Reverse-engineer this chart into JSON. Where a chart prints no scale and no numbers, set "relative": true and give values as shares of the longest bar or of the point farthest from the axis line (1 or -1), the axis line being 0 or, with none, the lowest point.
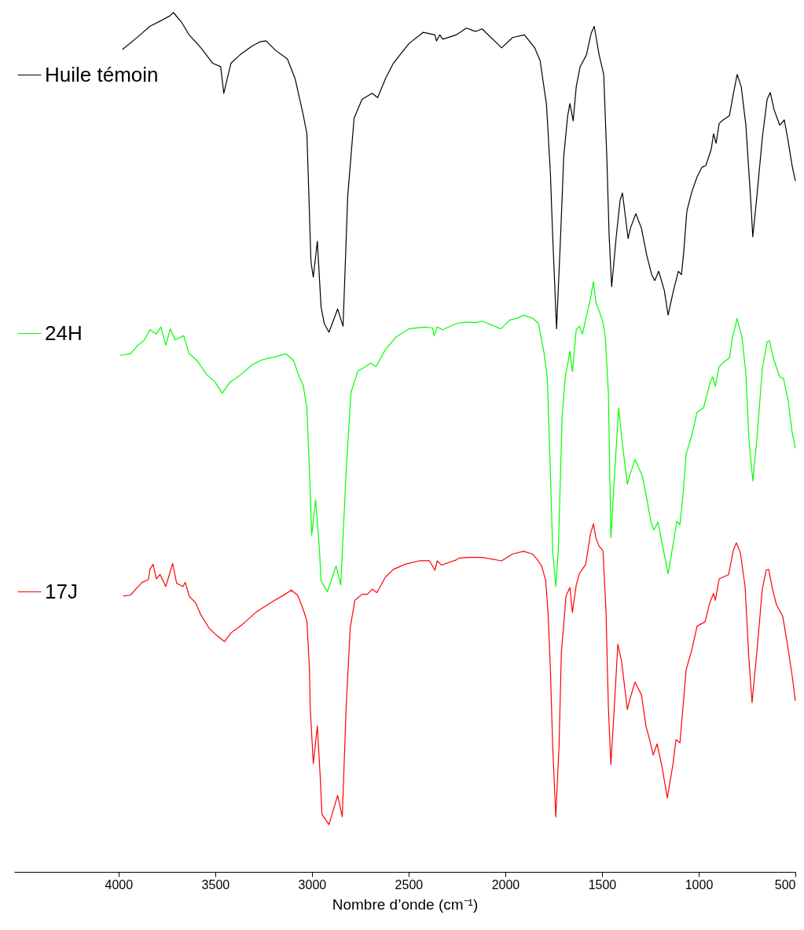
{
  "chart_data": {
    "type": "line",
    "relative": true,
    "xlabel": "Nombre d’onde (cm⁻¹)",
    "xlim": [
      4540,
      500
    ],
    "xticks": [
      4000,
      3500,
      3000,
      2500,
      2000,
      1500,
      1000,
      500
    ],
    "legend": "top left",
    "series": [
      {
        "name": "Huile témoin",
        "color": "#000000",
        "x": [
          3980,
          3899,
          3838,
          3777,
          3736,
          3716,
          3675,
          3635,
          3574,
          3513,
          3472,
          3456,
          3419,
          3371,
          3310,
          3269,
          3237,
          3188,
          3127,
          3087,
          3046,
          3026,
          3005,
          2993,
          2972,
          2953,
          2936,
          2912,
          2867,
          2839,
          2815,
          2782,
          2741,
          2689,
          2660,
          2620,
          2579,
          2498,
          2425,
          2364,
          2356,
          2339,
          2323,
          2254,
          2201,
          2153,
          2120,
          2019,
          1962,
          1901,
          1848,
          1820,
          1787,
          1767,
          1755,
          1735,
          1714,
          1698,
          1678,
          1666,
          1649,
          1633,
          1613,
          1580,
          1556,
          1540,
          1515,
          1491,
          1475,
          1463,
          1450,
          1426,
          1406,
          1394,
          1365,
          1353,
          1325,
          1296,
          1268,
          1243,
          1227,
          1207,
          1178,
          1158,
          1130,
          1105,
          1089,
          1077,
          1061,
          1036,
          1008,
          983,
          963,
          935,
          923,
          910,
          894,
          874,
          841,
          821,
          801,
          780,
          756,
          732,
          720,
          699,
          671,
          646,
          630,
          610,
          581,
          557,
          537,
          517,
          500
        ],
        "values": [
          0.957,
          0.972,
          0.984,
          0.991,
          0.996,
          1.0,
          0.989,
          0.974,
          0.959,
          0.941,
          0.937,
          0.906,
          0.941,
          0.951,
          0.961,
          0.966,
          0.967,
          0.956,
          0.946,
          0.923,
          0.882,
          0.859,
          0.71,
          0.692,
          0.734,
          0.658,
          0.638,
          0.628,
          0.655,
          0.635,
          0.786,
          0.877,
          0.899,
          0.906,
          0.901,
          0.923,
          0.941,
          0.964,
          0.977,
          0.974,
          0.967,
          0.974,
          0.969,
          0.974,
          0.982,
          0.978,
          0.981,
          0.959,
          0.971,
          0.974,
          0.959,
          0.944,
          0.893,
          0.814,
          0.74,
          0.632,
          0.74,
          0.832,
          0.879,
          0.894,
          0.874,
          0.914,
          0.937,
          0.951,
          0.976,
          0.984,
          0.951,
          0.928,
          0.832,
          0.74,
          0.681,
          0.74,
          0.782,
          0.79,
          0.737,
          0.749,
          0.766,
          0.749,
          0.717,
          0.695,
          0.688,
          0.699,
          0.677,
          0.648,
          0.677,
          0.699,
          0.695,
          0.722,
          0.769,
          0.791,
          0.809,
          0.82,
          0.822,
          0.841,
          0.859,
          0.848,
          0.871,
          0.875,
          0.88,
          0.905,
          0.928,
          0.914,
          0.869,
          0.786,
          0.739,
          0.786,
          0.854,
          0.899,
          0.907,
          0.887,
          0.869,
          0.875,
          0.85,
          0.822,
          0.804
        ]
      },
      {
        "name": "24H",
        "color": "#00ff00",
        "x": [
          3992,
          3939,
          3899,
          3866,
          3838,
          3805,
          3781,
          3756,
          3732,
          3708,
          3663,
          3635,
          3594,
          3545,
          3501,
          3464,
          3423,
          3371,
          3310,
          3257,
          3196,
          3135,
          3095,
          3066,
          3046,
          3026,
          3013,
          3001,
          2981,
          2961,
          2953,
          2920,
          2875,
          2851,
          2823,
          2798,
          2762,
          2729,
          2697,
          2668,
          2620,
          2567,
          2498,
          2417,
          2376,
          2368,
          2352,
          2323,
          2254,
          2201,
          2153,
          2120,
          2023,
          1978,
          1929,
          1905,
          1856,
          1828,
          1799,
          1783,
          1767,
          1755,
          1739,
          1726,
          1706,
          1690,
          1674,
          1666,
          1653,
          1633,
          1617,
          1601,
          1580,
          1560,
          1544,
          1532,
          1515,
          1495,
          1483,
          1467,
          1454,
          1434,
          1414,
          1398,
          1369,
          1357,
          1329,
          1292,
          1264,
          1247,
          1231,
          1211,
          1191,
          1158,
          1130,
          1113,
          1097,
          1081,
          1065,
          1036,
          1008,
          975,
          939,
          927,
          914,
          894,
          866,
          841,
          825,
          801,
          776,
          756,
          740,
          720,
          699,
          671,
          646,
          634,
          614,
          581,
          561,
          537,
          517,
          500
        ],
        "values": [
          0.601,
          0.603,
          0.613,
          0.619,
          0.631,
          0.626,
          0.634,
          0.613,
          0.632,
          0.619,
          0.624,
          0.603,
          0.595,
          0.579,
          0.57,
          0.557,
          0.57,
          0.578,
          0.59,
          0.596,
          0.599,
          0.603,
          0.595,
          0.576,
          0.567,
          0.54,
          0.466,
          0.392,
          0.433,
          0.374,
          0.339,
          0.326,
          0.356,
          0.334,
          0.466,
          0.558,
          0.583,
          0.587,
          0.592,
          0.588,
          0.608,
          0.622,
          0.632,
          0.634,
          0.633,
          0.624,
          0.634,
          0.631,
          0.638,
          0.64,
          0.639,
          0.641,
          0.632,
          0.642,
          0.645,
          0.648,
          0.644,
          0.638,
          0.603,
          0.576,
          0.466,
          0.374,
          0.332,
          0.374,
          0.53,
          0.576,
          0.595,
          0.606,
          0.582,
          0.631,
          0.635,
          0.626,
          0.647,
          0.667,
          0.687,
          0.663,
          0.653,
          0.64,
          0.622,
          0.558,
          0.389,
          0.466,
          0.54,
          0.505,
          0.451,
          0.461,
          0.48,
          0.461,
          0.429,
          0.407,
          0.398,
          0.407,
          0.384,
          0.347,
          0.384,
          0.408,
          0.404,
          0.439,
          0.486,
          0.508,
          0.535,
          0.54,
          0.571,
          0.576,
          0.565,
          0.588,
          0.594,
          0.598,
          0.622,
          0.644,
          0.622,
          0.58,
          0.503,
          0.455,
          0.503,
          0.585,
          0.617,
          0.618,
          0.598,
          0.576,
          0.574,
          0.548,
          0.512,
          0.493
        ]
      },
      {
        "name": "17J",
        "color": "#ff0000",
        "x": [
          3976,
          3939,
          3911,
          3878,
          3846,
          3838,
          3821,
          3805,
          3785,
          3756,
          3720,
          3700,
          3667,
          3655,
          3635,
          3602,
          3574,
          3533,
          3497,
          3452,
          3419,
          3359,
          3290,
          3208,
          3139,
          3107,
          3074,
          3046,
          3026,
          3013,
          3009,
          2993,
          2972,
          2957,
          2948,
          2912,
          2867,
          2843,
          2823,
          2802,
          2778,
          2741,
          2713,
          2689,
          2664,
          2620,
          2579,
          2518,
          2445,
          2392,
          2364,
          2352,
          2331,
          2254,
          2242,
          2193,
          2120,
          2019,
          1962,
          1905,
          1860,
          1836,
          1812,
          1791,
          1779,
          1767,
          1755,
          1739,
          1722,
          1710,
          1698,
          1686,
          1666,
          1653,
          1633,
          1617,
          1584,
          1560,
          1544,
          1532,
          1515,
          1495,
          1479,
          1467,
          1454,
          1434,
          1418,
          1398,
          1369,
          1353,
          1329,
          1296,
          1272,
          1255,
          1235,
          1215,
          1191,
          1162,
          1134,
          1117,
          1097,
          1081,
          1065,
          1036,
          1008,
          967,
          943,
          923,
          914,
          894,
          845,
          821,
          805,
          784,
          760,
          740,
          724,
          699,
          671,
          651,
          638,
          618,
          598,
          565,
          541,
          517,
          500
        ],
        "values": [
          0.321,
          0.322,
          0.329,
          0.337,
          0.34,
          0.352,
          0.358,
          0.341,
          0.346,
          0.332,
          0.359,
          0.336,
          0.332,
          0.337,
          0.321,
          0.313,
          0.299,
          0.284,
          0.276,
          0.268,
          0.278,
          0.288,
          0.302,
          0.314,
          0.323,
          0.328,
          0.322,
          0.306,
          0.292,
          0.237,
          0.192,
          0.126,
          0.17,
          0.11,
          0.067,
          0.055,
          0.089,
          0.064,
          0.192,
          0.284,
          0.316,
          0.323,
          0.323,
          0.329,
          0.325,
          0.343,
          0.352,
          0.358,
          0.362,
          0.362,
          0.351,
          0.362,
          0.357,
          0.363,
          0.365,
          0.366,
          0.366,
          0.362,
          0.37,
          0.373,
          0.37,
          0.364,
          0.356,
          0.339,
          0.302,
          0.237,
          0.147,
          0.064,
          0.147,
          0.256,
          0.287,
          0.321,
          0.331,
          0.302,
          0.334,
          0.347,
          0.358,
          0.393,
          0.405,
          0.389,
          0.379,
          0.374,
          0.302,
          0.192,
          0.125,
          0.201,
          0.265,
          0.244,
          0.189,
          0.203,
          0.221,
          0.206,
          0.169,
          0.155,
          0.136,
          0.149,
          0.124,
          0.086,
          0.124,
          0.154,
          0.15,
          0.192,
          0.235,
          0.258,
          0.286,
          0.291,
          0.313,
          0.324,
          0.316,
          0.341,
          0.346,
          0.374,
          0.383,
          0.371,
          0.332,
          0.247,
          0.197,
          0.256,
          0.329,
          0.351,
          0.352,
          0.329,
          0.311,
          0.297,
          0.265,
          0.229,
          0.199
        ]
      }
    ]
  }
}
